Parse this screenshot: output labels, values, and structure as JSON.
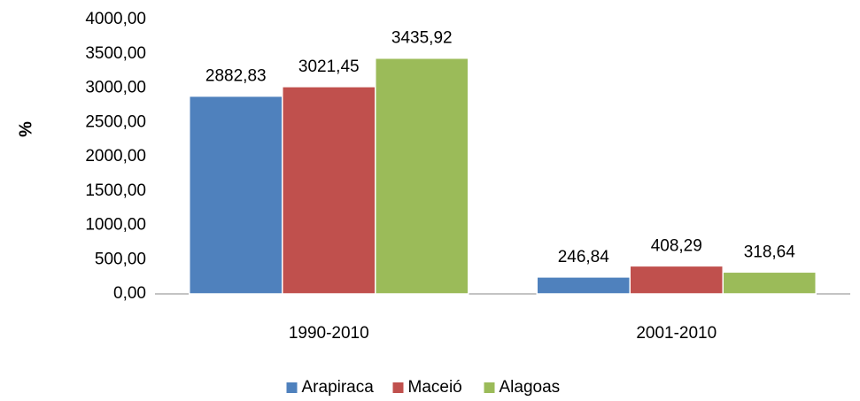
{
  "chart_data": {
    "type": "bar",
    "y_label": "%",
    "categories": [
      "1990-2010",
      "2001-2010"
    ],
    "series": [
      {
        "name": "Arapiraca",
        "color": "#4f81bd",
        "values": [
          2882.83,
          246.84
        ],
        "value_labels": [
          "2882,83",
          "246,84"
        ]
      },
      {
        "name": "Maceió",
        "color": "#c0504d",
        "values": [
          3021.45,
          408.29
        ],
        "value_labels": [
          "3021,45",
          "408,29"
        ]
      },
      {
        "name": "Alagoas",
        "color": "#9bbb59",
        "values": [
          3435.92,
          318.64
        ],
        "value_labels": [
          "3435,92",
          "318,64"
        ]
      }
    ],
    "ylim": [
      0,
      4000
    ],
    "yticks": [
      {
        "value": 0,
        "label": "0,00"
      },
      {
        "value": 500,
        "label": "500,00"
      },
      {
        "value": 1000,
        "label": "1000,00"
      },
      {
        "value": 1500,
        "label": "1500,00"
      },
      {
        "value": 2000,
        "label": "2000,00"
      },
      {
        "value": 2500,
        "label": "2500,00"
      },
      {
        "value": 3000,
        "label": "3000,00"
      },
      {
        "value": 3500,
        "label": "3500,00"
      },
      {
        "value": 4000,
        "label": "4000,00"
      }
    ],
    "grid": false,
    "legend": "bottom"
  }
}
